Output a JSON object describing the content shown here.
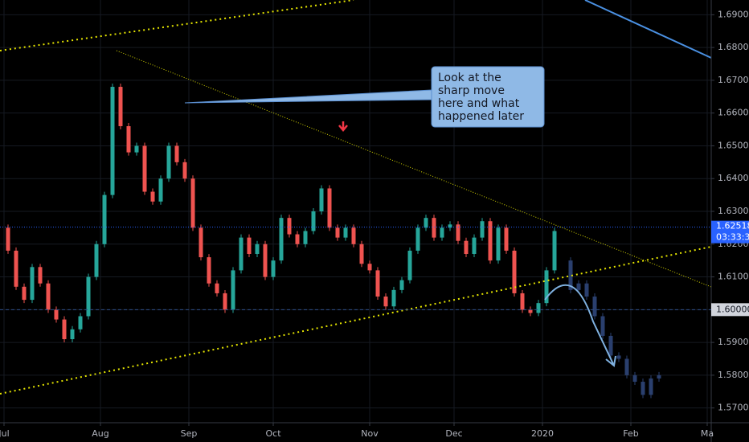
{
  "chart_data": {
    "type": "candlestick",
    "x": [
      0,
      2,
      4,
      6,
      8,
      10,
      12,
      14,
      16,
      18,
      20,
      22,
      24,
      26,
      28,
      30,
      32,
      34,
      36,
      38,
      40,
      42,
      44,
      46,
      48,
      50,
      52,
      54,
      56,
      58,
      60,
      62,
      64,
      66,
      68,
      70,
      72,
      74,
      76,
      78,
      80,
      82,
      84,
      86,
      88,
      90,
      92,
      94,
      96,
      98,
      100,
      102,
      104,
      106,
      108,
      110,
      112,
      114,
      116,
      118,
      120,
      122,
      124,
      126,
      128,
      130,
      132,
      134,
      136,
      138
    ],
    "values": [
      1.625,
      1.618,
      1.607,
      1.603,
      1.613,
      1.608,
      1.6,
      1.597,
      1.591,
      1.594,
      1.598,
      1.61,
      1.62,
      1.635,
      1.668,
      1.656,
      1.648,
      1.65,
      1.636,
      1.633,
      1.64,
      1.65,
      1.645,
      1.64,
      1.625,
      1.616,
      1.608,
      1.605,
      1.6,
      1.612,
      1.622,
      1.617,
      1.62,
      1.61,
      1.615,
      1.628,
      1.623,
      1.62,
      1.624,
      1.63,
      1.637,
      1.625,
      1.622,
      1.625,
      1.62,
      1.614,
      1.612,
      1.604,
      1.601,
      1.606,
      1.609,
      1.618,
      1.625,
      1.628,
      1.622,
      1.625,
      1.626,
      1.621,
      1.617,
      1.622,
      1.627,
      1.615,
      1.625,
      1.618,
      1.605,
      1.6,
      1.599,
      1.602,
      1.612,
      1.624
    ],
    "up_color": "#26a69a",
    "down_color": "#ef5350",
    "projection": {
      "x": [
        140,
        142,
        144,
        146,
        148,
        150,
        152,
        154,
        156,
        158,
        160,
        162,
        164
      ],
      "values": [
        1.615,
        1.606,
        1.608,
        1.604,
        1.598,
        1.592,
        1.586,
        1.585,
        1.58,
        1.578,
        1.574,
        1.579,
        1.58
      ],
      "color": "#2a3f6e"
    },
    "xlim": [
      0,
      177
    ],
    "xticks": [
      {
        "value": 1,
        "label": "Jul"
      },
      {
        "value": 25,
        "label": "Aug"
      },
      {
        "value": 47,
        "label": "Sep"
      },
      {
        "value": 68,
        "label": "Oct"
      },
      {
        "value": 92,
        "label": "Nov"
      },
      {
        "value": 113,
        "label": "Dec"
      },
      {
        "value": 135,
        "label": "2020"
      },
      {
        "value": 157,
        "label": "Feb"
      },
      {
        "value": 176,
        "label": "Ma"
      }
    ],
    "ylim": [
      1.5655,
      1.6945
    ],
    "yticks": [
      {
        "value": 1.57,
        "label": "1.57000"
      },
      {
        "value": 1.58,
        "label": "1.58000"
      },
      {
        "value": 1.59,
        "label": "1.59000"
      },
      {
        "value": 1.6,
        "label": "1.60000"
      },
      {
        "value": 1.61,
        "label": "1.61000"
      },
      {
        "value": 1.62,
        "label": "1.62000"
      },
      {
        "value": 1.63,
        "label": "1.63000"
      },
      {
        "value": 1.64,
        "label": "1.64000"
      },
      {
        "value": 1.65,
        "label": "1.65000"
      },
      {
        "value": 1.66,
        "label": "1.66000"
      },
      {
        "value": 1.67,
        "label": "1.67000"
      },
      {
        "value": 1.68,
        "label": "1.68000"
      },
      {
        "value": 1.69,
        "label": "1.69000"
      }
    ],
    "grid": true,
    "last_price": {
      "value": 1.62518,
      "label": "1.62518",
      "countdown": "03:33:35"
    },
    "level": {
      "value": 1.6,
      "label": "1.60000"
    },
    "callout": [
      "Look at the",
      "sharp move",
      "here and what",
      "happened later"
    ]
  }
}
